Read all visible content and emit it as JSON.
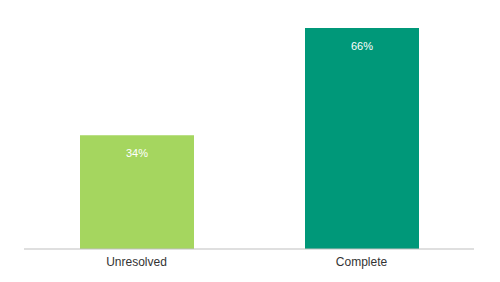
{
  "chart_data": {
    "type": "bar",
    "categories": [
      "Unresolved",
      "Complete"
    ],
    "values": [
      34,
      66
    ],
    "value_labels": [
      "34%",
      "66%"
    ],
    "colors": [
      "#a5d65f",
      "#009879"
    ],
    "data_labels": true,
    "tick_labels": "x",
    "grid": false
  }
}
